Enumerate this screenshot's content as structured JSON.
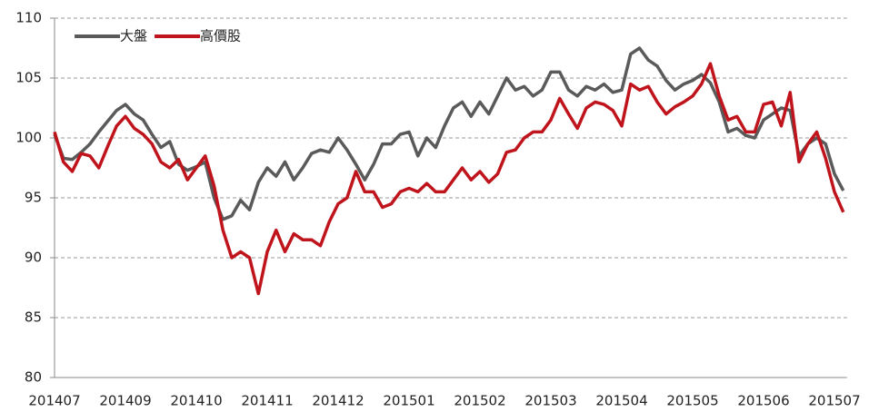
{
  "chart_data": {
    "type": "line",
    "categories": [
      "201407",
      null,
      null,
      null,
      null,
      null,
      null,
      null,
      "201409",
      null,
      null,
      null,
      null,
      null,
      null,
      null,
      "201410",
      null,
      null,
      null,
      null,
      null,
      null,
      null,
      "201411",
      null,
      null,
      null,
      null,
      null,
      null,
      null,
      "201412",
      null,
      null,
      null,
      null,
      null,
      null,
      null,
      "201501",
      null,
      null,
      null,
      null,
      null,
      null,
      null,
      "201502",
      null,
      null,
      null,
      null,
      null,
      null,
      null,
      "201503",
      null,
      null,
      null,
      null,
      null,
      null,
      null,
      "201504",
      null,
      null,
      null,
      null,
      null,
      null,
      null,
      "201505",
      null,
      null,
      null,
      null,
      null,
      null,
      null,
      "201506",
      null,
      null,
      null,
      null,
      null,
      null,
      null,
      "201507",
      null
    ],
    "series": [
      {
        "name": "大盤",
        "color": "#5a5a5a",
        "values": [
          100.3,
          98.3,
          98.2,
          98.8,
          99.5,
          100.5,
          101.4,
          102.3,
          102.8,
          102.0,
          101.5,
          100.3,
          99.2,
          99.7,
          97.8,
          97.3,
          97.6,
          98.0,
          95.0,
          93.2,
          93.5,
          94.8,
          94.0,
          96.3,
          97.5,
          96.8,
          98.0,
          96.5,
          97.5,
          98.7,
          99.0,
          98.8,
          100.0,
          99.0,
          97.8,
          96.5,
          97.8,
          99.5,
          99.5,
          100.3,
          100.5,
          98.5,
          100.0,
          99.2,
          101.0,
          102.5,
          103.0,
          101.8,
          103.0,
          102.0,
          103.5,
          105.0,
          104.0,
          104.3,
          103.5,
          104.0,
          105.5,
          105.5,
          104.0,
          103.5,
          104.3,
          104.0,
          104.5,
          103.8,
          104.0,
          107.0,
          107.5,
          106.5,
          106.0,
          104.8,
          104.0,
          104.5,
          104.8,
          105.3,
          104.6,
          103.0,
          100.5,
          100.8,
          100.2,
          100.0,
          101.5,
          102.0,
          102.5,
          102.3,
          98.5,
          99.5,
          100.0,
          99.5,
          97.0,
          95.6
        ]
      },
      {
        "name": "高價股",
        "color": "#c0141c",
        "values": [
          100.5,
          98.0,
          97.2,
          98.7,
          98.5,
          97.5,
          99.3,
          101.0,
          101.8,
          100.8,
          100.3,
          99.5,
          98.0,
          97.5,
          98.2,
          96.5,
          97.5,
          98.5,
          96.0,
          92.3,
          90.0,
          90.5,
          90.0,
          87.0,
          90.5,
          92.3,
          90.5,
          92.0,
          91.5,
          91.5,
          91.0,
          93.0,
          94.5,
          95.0,
          97.2,
          95.5,
          95.5,
          94.2,
          94.5,
          95.5,
          95.8,
          95.5,
          96.2,
          95.5,
          95.5,
          96.5,
          97.5,
          96.5,
          97.2,
          96.3,
          97.0,
          98.8,
          99.0,
          100.0,
          100.5,
          100.5,
          101.5,
          103.3,
          102.0,
          100.8,
          102.5,
          103.0,
          102.8,
          102.3,
          101.0,
          104.5,
          104.0,
          104.3,
          103.0,
          102.0,
          102.6,
          103.0,
          103.5,
          104.5,
          106.2,
          103.5,
          101.5,
          101.8,
          100.5,
          100.5,
          102.8,
          103.0,
          101.0,
          103.8,
          98.0,
          99.5,
          100.5,
          98.3,
          95.5,
          93.8
        ]
      }
    ],
    "ylim": [
      80,
      110
    ],
    "yticks": [
      80,
      85,
      90,
      95,
      100,
      105,
      110
    ],
    "grid": true,
    "legend": "top-left"
  }
}
